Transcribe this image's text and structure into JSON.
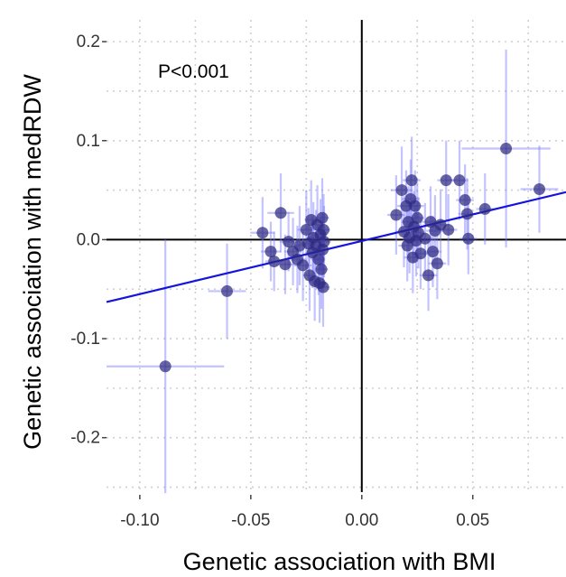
{
  "chart_data": {
    "type": "scatter",
    "title": "",
    "xlabel": "Genetic association with BMI",
    "ylabel": "Genetic association with medRDW",
    "xlim": [
      -0.115,
      0.092
    ],
    "ylim": [
      -0.255,
      0.222
    ],
    "x_ticks": [
      -0.1,
      -0.05,
      0.0,
      0.05
    ],
    "x_tick_labels": [
      "-0.10",
      "-0.05",
      "0.00",
      "0.05"
    ],
    "y_ticks": [
      -0.2,
      -0.1,
      0.0,
      0.1,
      0.2
    ],
    "y_tick_labels": [
      "-0.2",
      "-0.1",
      "0.0",
      "0.1",
      "0.2"
    ],
    "grid": "dotted",
    "annotation": "P<0.001",
    "regression_line": {
      "x": [
        -0.115,
        0.092
      ],
      "y": [
        -0.063,
        0.048
      ]
    },
    "reference_lines": {
      "x": 0.0,
      "y": 0.0
    },
    "colors": {
      "point_fill": "#2e2a80",
      "error_bar": "#7a7aff",
      "regression_line": "#1414dc",
      "reference_line": "#000000",
      "grid": "#cfcfcf"
    },
    "points": [
      {
        "x": -0.0885,
        "y": -0.128,
        "xerr": 0.0265,
        "yerr": 0.128
      },
      {
        "x": -0.0607,
        "y": -0.052,
        "xerr": 0.0085,
        "yerr": 0.048
      },
      {
        "x": -0.0447,
        "y": 0.007,
        "xerr": 0.0055,
        "yerr": 0.036
      },
      {
        "x": -0.041,
        "y": -0.012,
        "xerr": 0.0045,
        "yerr": 0.03
      },
      {
        "x": -0.0395,
        "y": -0.022,
        "xerr": 0.004,
        "yerr": 0.03
      },
      {
        "x": -0.0365,
        "y": 0.027,
        "xerr": 0.006,
        "yerr": 0.04
      },
      {
        "x": -0.0345,
        "y": -0.025,
        "xerr": 0.004,
        "yerr": 0.03
      },
      {
        "x": -0.033,
        "y": -0.002,
        "xerr": 0.004,
        "yerr": 0.03
      },
      {
        "x": -0.031,
        "y": -0.012,
        "xerr": 0.004,
        "yerr": 0.034
      },
      {
        "x": -0.029,
        "y": -0.02,
        "xerr": 0.004,
        "yerr": 0.034
      },
      {
        "x": -0.028,
        "y": -0.006,
        "xerr": 0.003,
        "yerr": 0.04
      },
      {
        "x": -0.0265,
        "y": -0.026,
        "xerr": 0.004,
        "yerr": 0.036
      },
      {
        "x": -0.025,
        "y": 0.01,
        "xerr": 0.004,
        "yerr": 0.04
      },
      {
        "x": -0.024,
        "y": -0.004,
        "xerr": 0.004,
        "yerr": 0.036
      },
      {
        "x": -0.0235,
        "y": -0.036,
        "xerr": 0.003,
        "yerr": 0.036
      },
      {
        "x": -0.0228,
        "y": 0.02,
        "xerr": 0.003,
        "yerr": 0.04
      },
      {
        "x": -0.0222,
        "y": -0.013,
        "xerr": 0.003,
        "yerr": 0.036
      },
      {
        "x": -0.0218,
        "y": 0.002,
        "xerr": 0.003,
        "yerr": 0.036
      },
      {
        "x": -0.0212,
        "y": -0.042,
        "xerr": 0.003,
        "yerr": 0.04
      },
      {
        "x": -0.0206,
        "y": -0.006,
        "xerr": 0.003,
        "yerr": 0.036
      },
      {
        "x": -0.02,
        "y": 0.015,
        "xerr": 0.003,
        "yerr": 0.04
      },
      {
        "x": -0.0195,
        "y": -0.02,
        "xerr": 0.003,
        "yerr": 0.036
      },
      {
        "x": -0.019,
        "y": -0.044,
        "xerr": 0.003,
        "yerr": 0.04
      },
      {
        "x": -0.0186,
        "y": 0.005,
        "xerr": 0.003,
        "yerr": 0.036
      },
      {
        "x": -0.0182,
        "y": -0.03,
        "xerr": 0.003,
        "yerr": 0.04
      },
      {
        "x": -0.0178,
        "y": 0.022,
        "xerr": 0.003,
        "yerr": 0.04
      },
      {
        "x": -0.0176,
        "y": -0.01,
        "xerr": 0.003,
        "yerr": 0.036
      },
      {
        "x": -0.0174,
        "y": -0.048,
        "xerr": 0.003,
        "yerr": 0.04
      },
      {
        "x": -0.0172,
        "y": 0.01,
        "xerr": 0.003,
        "yerr": 0.036
      },
      {
        "x": -0.017,
        "y": -0.002,
        "xerr": 0.003,
        "yerr": 0.036
      },
      {
        "x": 0.0155,
        "y": 0.025,
        "xerr": 0.004,
        "yerr": 0.04
      },
      {
        "x": 0.018,
        "y": 0.05,
        "xerr": 0.005,
        "yerr": 0.044
      },
      {
        "x": 0.019,
        "y": 0.008,
        "xerr": 0.004,
        "yerr": 0.036
      },
      {
        "x": 0.02,
        "y": 0.034,
        "xerr": 0.004,
        "yerr": 0.036
      },
      {
        "x": 0.0205,
        "y": -0.006,
        "xerr": 0.004,
        "yerr": 0.036
      },
      {
        "x": 0.021,
        "y": 0.018,
        "xerr": 0.003,
        "yerr": 0.036
      },
      {
        "x": 0.0215,
        "y": 0.002,
        "xerr": 0.003,
        "yerr": 0.036
      },
      {
        "x": 0.022,
        "y": 0.041,
        "xerr": 0.004,
        "yerr": 0.04
      },
      {
        "x": 0.0225,
        "y": 0.06,
        "xerr": 0.004,
        "yerr": 0.044
      },
      {
        "x": 0.023,
        "y": -0.018,
        "xerr": 0.004,
        "yerr": 0.036
      },
      {
        "x": 0.0235,
        "y": 0.013,
        "xerr": 0.003,
        "yerr": 0.036
      },
      {
        "x": 0.024,
        "y": 0.034,
        "xerr": 0.004,
        "yerr": 0.036
      },
      {
        "x": 0.0245,
        "y": -0.001,
        "xerr": 0.003,
        "yerr": 0.036
      },
      {
        "x": 0.025,
        "y": 0.022,
        "xerr": 0.003,
        "yerr": 0.036
      },
      {
        "x": 0.0255,
        "y": 0.007,
        "xerr": 0.003,
        "yerr": 0.036
      },
      {
        "x": 0.0265,
        "y": -0.014,
        "xerr": 0.004,
        "yerr": 0.036
      },
      {
        "x": 0.0285,
        "y": 0.001,
        "xerr": 0.004,
        "yerr": 0.036
      },
      {
        "x": 0.03,
        "y": -0.036,
        "xerr": 0.004,
        "yerr": 0.036
      },
      {
        "x": 0.031,
        "y": 0.018,
        "xerr": 0.004,
        "yerr": 0.036
      },
      {
        "x": 0.032,
        "y": -0.012,
        "xerr": 0.004,
        "yerr": 0.036
      },
      {
        "x": 0.033,
        "y": 0.009,
        "xerr": 0.004,
        "yerr": 0.036
      },
      {
        "x": 0.034,
        "y": -0.024,
        "xerr": 0.004,
        "yerr": 0.036
      },
      {
        "x": 0.0355,
        "y": 0.015,
        "xerr": 0.004,
        "yerr": 0.036
      },
      {
        "x": 0.038,
        "y": 0.06,
        "xerr": 0.004,
        "yerr": 0.04
      },
      {
        "x": 0.039,
        "y": 0.01,
        "xerr": 0.004,
        "yerr": 0.036
      },
      {
        "x": 0.044,
        "y": 0.06,
        "xerr": 0.004,
        "yerr": 0.04
      },
      {
        "x": 0.0465,
        "y": 0.04,
        "xerr": 0.004,
        "yerr": 0.036
      },
      {
        "x": 0.0475,
        "y": 0.026,
        "xerr": 0.004,
        "yerr": 0.036
      },
      {
        "x": 0.048,
        "y": 0.001,
        "xerr": 0.004,
        "yerr": 0.036
      },
      {
        "x": 0.0555,
        "y": 0.031,
        "xerr": 0.004,
        "yerr": 0.036
      },
      {
        "x": 0.065,
        "y": 0.092,
        "xerr": 0.02,
        "yerr": 0.1
      },
      {
        "x": 0.08,
        "y": 0.051,
        "xerr": 0.0085,
        "yerr": 0.044
      }
    ]
  }
}
